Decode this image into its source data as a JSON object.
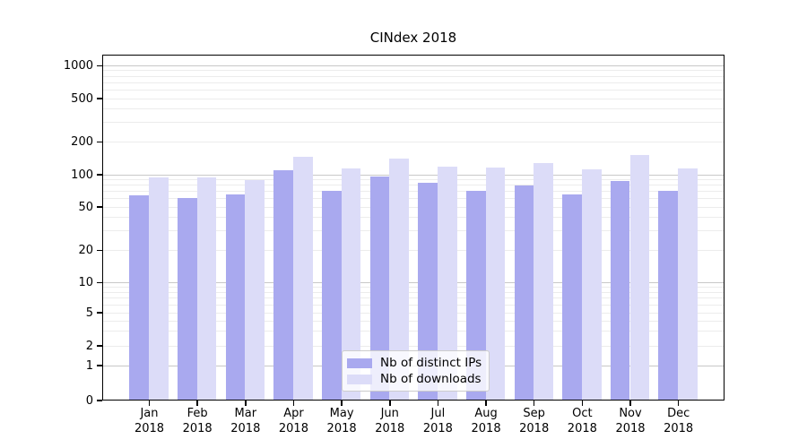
{
  "chart_data": {
    "type": "bar",
    "title": "CINdex 2018",
    "categories": [
      "Jan",
      "Feb",
      "Mar",
      "Apr",
      "May",
      "Jun",
      "Jul",
      "Aug",
      "Sep",
      "Oct",
      "Nov",
      "Dec"
    ],
    "x_year_label": "2018",
    "series": [
      {
        "name": "Nb of distinct IPs",
        "color": "#a9a9ef",
        "values": [
          63,
          60,
          65,
          108,
          70,
          95,
          84,
          70,
          78,
          65,
          87,
          70
        ]
      },
      {
        "name": "Nb of downloads",
        "color": "#dcdcf8",
        "values": [
          94,
          93,
          89,
          145,
          112,
          140,
          118,
          116,
          127,
          110,
          150,
          113
        ]
      }
    ],
    "yscale": "symlog",
    "yticks": [
      0,
      1,
      2,
      5,
      10,
      20,
      50,
      100,
      200,
      500,
      1000
    ],
    "ylim": [
      0,
      1300
    ],
    "grid": true,
    "legend_position": "lower center"
  },
  "colors": {
    "grid_major": "#c8c8c8",
    "grid_minor": "#ececec",
    "spine": "#000000",
    "background": "#ffffff"
  }
}
